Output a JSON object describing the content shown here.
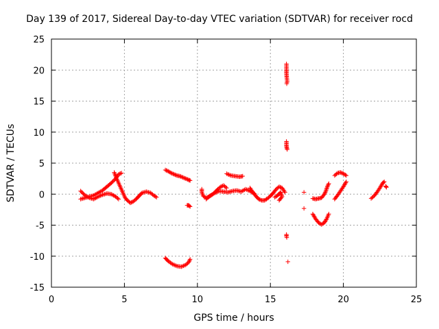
{
  "chart_data": {
    "type": "scatter",
    "title": "Day 139 of 2017, Sidereal Day-to-day VTEC variation (SDTVAR) for receiver rocd",
    "xlabel": "GPS time / hours",
    "ylabel": "SDTVAR / TECUs",
    "xlim": [
      0,
      25
    ],
    "ylim": [
      -15,
      25
    ],
    "x_ticks": [
      "0",
      "5",
      "10",
      "15",
      "20",
      "25"
    ],
    "y_ticks": [
      "-15",
      "-10",
      "-5",
      "0",
      "5",
      "10",
      "15",
      "20",
      "25"
    ],
    "grid": true,
    "marker": "plus",
    "series": [
      {
        "color": "#ff0000",
        "segments": [
          [
            [
              2.0,
              0.5
            ],
            [
              2.3,
              -0.2
            ],
            [
              2.6,
              -0.6
            ],
            [
              2.9,
              -0.8
            ],
            [
              3.2,
              -0.4
            ],
            [
              3.5,
              -0.1
            ],
            [
              3.8,
              0.1
            ],
            [
              4.1,
              0.0
            ],
            [
              4.4,
              -0.4
            ],
            [
              4.6,
              -0.8
            ]
          ],
          [
            [
              2.0,
              -0.8
            ],
            [
              2.3,
              -0.6
            ],
            [
              2.6,
              -0.4
            ],
            [
              2.9,
              -0.2
            ],
            [
              3.2,
              0.2
            ],
            [
              3.5,
              0.6
            ],
            [
              3.8,
              1.2
            ],
            [
              4.1,
              1.8
            ],
            [
              4.4,
              2.5
            ],
            [
              4.6,
              3.2
            ],
            [
              4.8,
              3.4
            ]
          ],
          [
            [
              4.3,
              3.5
            ],
            [
              4.45,
              2.6
            ],
            [
              4.6,
              1.8
            ],
            [
              4.75,
              1.0
            ],
            [
              4.9,
              0.2
            ],
            [
              5.05,
              -0.6
            ],
            [
              5.2,
              -1.0
            ],
            [
              5.4,
              -1.4
            ]
          ],
          [
            [
              5.4,
              -1.4
            ],
            [
              5.6,
              -1.2
            ],
            [
              5.8,
              -0.8
            ],
            [
              6.0,
              -0.3
            ],
            [
              6.2,
              0.2
            ],
            [
              6.5,
              0.4
            ],
            [
              6.8,
              0.2
            ],
            [
              7.0,
              -0.2
            ],
            [
              7.2,
              -0.5
            ]
          ],
          [
            [
              7.8,
              3.9
            ],
            [
              8.0,
              3.7
            ],
            [
              8.2,
              3.4
            ],
            [
              8.4,
              3.2
            ],
            [
              8.6,
              3.0
            ],
            [
              8.8,
              2.9
            ],
            [
              9.0,
              2.7
            ],
            [
              9.2,
              2.5
            ],
            [
              9.4,
              2.3
            ],
            [
              9.5,
              2.2
            ]
          ],
          [
            [
              7.8,
              -10.3
            ],
            [
              8.0,
              -10.8
            ],
            [
              8.3,
              -11.3
            ],
            [
              8.6,
              -11.6
            ],
            [
              8.9,
              -11.7
            ],
            [
              9.2,
              -11.4
            ],
            [
              9.4,
              -11.0
            ],
            [
              9.5,
              -10.5
            ]
          ],
          [
            [
              9.3,
              -1.8
            ],
            [
              9.4,
              -1.8
            ],
            [
              9.5,
              -2.0
            ]
          ],
          [
            [
              10.3,
              0.8
            ],
            [
              10.3,
              0.3
            ],
            [
              10.4,
              -0.3
            ],
            [
              10.6,
              -0.6
            ],
            [
              10.8,
              -0.4
            ],
            [
              11.0,
              -0.1
            ],
            [
              11.2,
              0.3
            ],
            [
              11.4,
              0.8
            ],
            [
              11.6,
              1.2
            ],
            [
              11.8,
              1.4
            ],
            [
              12.0,
              1.0
            ]
          ],
          [
            [
              10.6,
              -0.8
            ],
            [
              10.9,
              -0.2
            ],
            [
              11.2,
              0.2
            ],
            [
              11.5,
              0.5
            ],
            [
              11.8,
              0.4
            ],
            [
              12.1,
              0.3
            ],
            [
              12.4,
              0.5
            ],
            [
              12.7,
              0.6
            ],
            [
              13.0,
              0.4
            ],
            [
              13.3,
              0.8
            ],
            [
              13.6,
              0.5
            ],
            [
              13.9,
              0.1
            ]
          ],
          [
            [
              12.0,
              3.3
            ],
            [
              12.3,
              3.0
            ],
            [
              12.6,
              2.9
            ],
            [
              12.9,
              2.8
            ],
            [
              13.1,
              2.9
            ]
          ],
          [
            [
              13.6,
              1.0
            ],
            [
              13.8,
              0.3
            ],
            [
              14.0,
              -0.3
            ],
            [
              14.2,
              -0.8
            ],
            [
              14.4,
              -1.0
            ],
            [
              14.6,
              -1.0
            ],
            [
              14.8,
              -0.7
            ],
            [
              15.0,
              -0.3
            ],
            [
              15.2,
              0.2
            ],
            [
              15.4,
              0.8
            ],
            [
              15.6,
              1.2
            ],
            [
              15.8,
              1.0
            ],
            [
              16.0,
              0.3
            ]
          ],
          [
            [
              15.3,
              -0.5
            ],
            [
              15.5,
              -0.2
            ],
            [
              15.7,
              0.3
            ],
            [
              15.8,
              -0.4
            ],
            [
              15.6,
              -1.0
            ]
          ],
          [
            [
              16.1,
              21.0
            ],
            [
              16.1,
              20.0
            ],
            [
              16.1,
              19.5
            ],
            [
              16.12,
              18.8
            ],
            [
              16.15,
              18.2
            ],
            [
              16.12,
              17.8
            ]
          ],
          [
            [
              16.1,
              8.5
            ],
            [
              16.1,
              7.8
            ],
            [
              16.12,
              7.5
            ],
            [
              16.15,
              7.2
            ]
          ],
          [
            [
              16.1,
              -6.5
            ],
            [
              16.1,
              -6.8
            ],
            [
              16.12,
              -7.0
            ]
          ],
          [
            [
              16.2,
              -10.9
            ]
          ],
          [
            [
              17.3,
              0.3
            ]
          ],
          [
            [
              17.3,
              -2.3
            ]
          ],
          [
            [
              17.9,
              -0.7
            ],
            [
              18.1,
              -0.8
            ],
            [
              18.3,
              -0.7
            ],
            [
              18.5,
              -0.6
            ],
            [
              18.7,
              0.0
            ],
            [
              18.8,
              0.5
            ],
            [
              18.9,
              1.2
            ],
            [
              19.0,
              1.7
            ]
          ],
          [
            [
              17.9,
              -3.2
            ],
            [
              18.1,
              -4.0
            ],
            [
              18.3,
              -4.6
            ],
            [
              18.5,
              -4.9
            ],
            [
              18.7,
              -4.6
            ],
            [
              18.85,
              -4.0
            ],
            [
              19.0,
              -3.2
            ]
          ],
          [
            [
              19.4,
              3.0
            ],
            [
              19.6,
              3.4
            ],
            [
              19.8,
              3.5
            ],
            [
              20.0,
              3.3
            ],
            [
              20.2,
              3.0
            ]
          ],
          [
            [
              19.4,
              -0.8
            ],
            [
              19.6,
              -0.2
            ],
            [
              19.8,
              0.5
            ],
            [
              20.0,
              1.2
            ],
            [
              20.2,
              2.0
            ]
          ],
          [
            [
              21.9,
              -0.7
            ],
            [
              22.1,
              -0.3
            ],
            [
              22.3,
              0.3
            ],
            [
              22.5,
              1.0
            ],
            [
              22.7,
              1.8
            ],
            [
              22.8,
              2.0
            ]
          ],
          [
            [
              22.9,
              1.3
            ],
            [
              22.95,
              1.1
            ]
          ]
        ]
      }
    ]
  }
}
